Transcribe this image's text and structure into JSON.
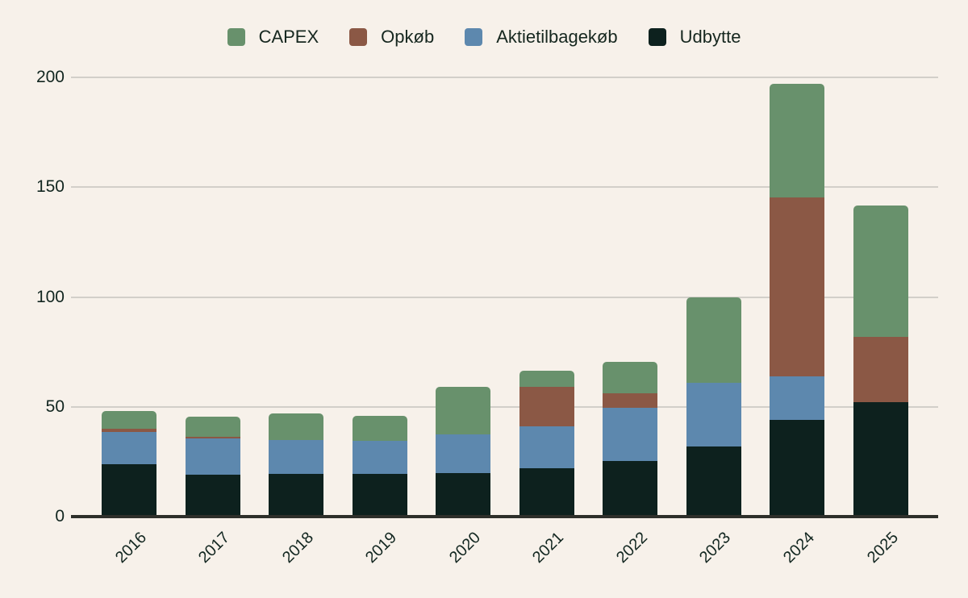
{
  "background_color": "#f7f1ea",
  "text_color": "#122620",
  "gridline_color": "#d2cfc9",
  "axis_line_color": "#2e2f2a",
  "legend": {
    "items": [
      {
        "label": "CAPEX",
        "color": "#68916c"
      },
      {
        "label": "Opkøb",
        "color": "#8b5845"
      },
      {
        "label": "Aktietilbagekøb",
        "color": "#5d88ae"
      },
      {
        "label": "Udbytte",
        "color": "#0d211e"
      }
    ]
  },
  "chart_data": {
    "type": "bar",
    "stacked": true,
    "title": "",
    "xlabel": "",
    "ylabel": "",
    "categories": [
      "2016",
      "2017",
      "2018",
      "2019",
      "2020",
      "2021",
      "2022",
      "2023",
      "2024",
      "2025"
    ],
    "series": [
      {
        "name": "Udbytte",
        "color": "#0d211e",
        "values": [
          24,
          19,
          19.5,
          19.5,
          20,
          22,
          25.5,
          32,
          44,
          52
        ]
      },
      {
        "name": "Aktietilbagekøb",
        "color": "#5d88ae",
        "values": [
          14.5,
          16.5,
          15.5,
          15,
          17.5,
          19,
          24,
          29,
          20,
          0
        ]
      },
      {
        "name": "Opkøb",
        "color": "#8b5845",
        "values": [
          1.5,
          1,
          0,
          0,
          0,
          18,
          6.5,
          0,
          81.5,
          30
        ]
      },
      {
        "name": "CAPEX",
        "color": "#68916c",
        "values": [
          8,
          9,
          12,
          11.5,
          21.5,
          7.5,
          14.5,
          39,
          51.5,
          59.5
        ]
      }
    ],
    "totals": [
      48,
      45.5,
      47,
      46,
      59,
      66.5,
      70.5,
      100,
      197,
      141.5
    ],
    "y_ticks": [
      0,
      50,
      100,
      150,
      200
    ],
    "ylim": [
      0,
      200
    ],
    "grid": true,
    "legend_position": "top",
    "legend_order": [
      "CAPEX",
      "Opkøb",
      "Aktietilbagekøb",
      "Udbytte"
    ]
  }
}
